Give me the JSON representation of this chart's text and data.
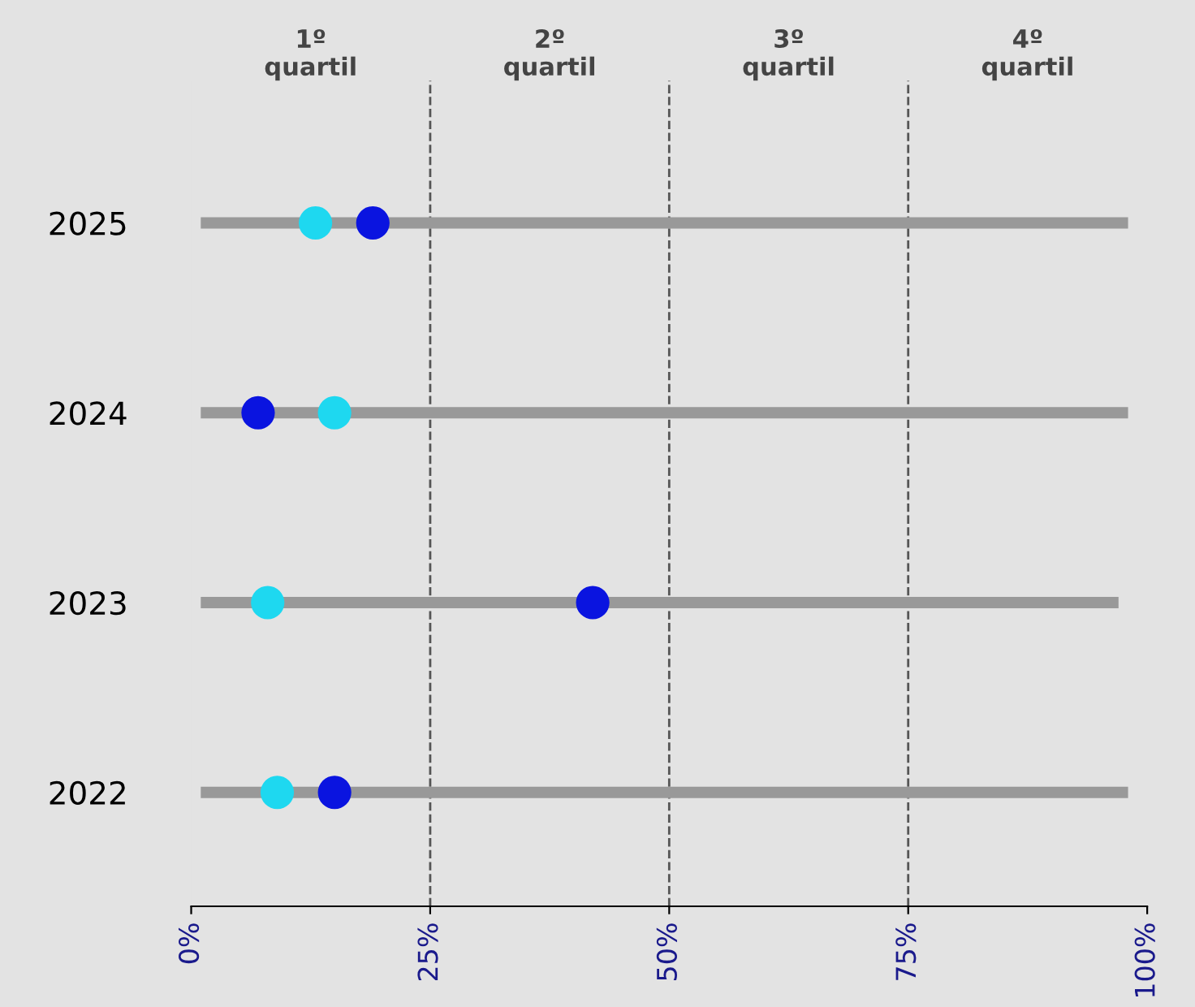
{
  "chart_data": {
    "type": "bar",
    "orientation": "horizontal",
    "categories": [
      "2025",
      "2024",
      "2023",
      "2022"
    ],
    "series": [
      {
        "color": "#999999",
        "base": [
          1,
          1,
          1,
          1
        ],
        "values": [
          97,
          97,
          96,
          97
        ]
      },
      {
        "type": "scatter",
        "color": "#1ed8f0",
        "values": [
          13,
          15,
          8,
          9
        ]
      },
      {
        "type": "scatter",
        "color": "#0a14e0",
        "values": [
          19,
          7,
          42,
          15
        ]
      }
    ],
    "xlim": [
      0,
      100
    ],
    "xticks": [
      {
        "value": 0,
        "label": "0%"
      },
      {
        "value": 25,
        "label": "25%"
      },
      {
        "value": 50,
        "label": "50%"
      },
      {
        "value": 75,
        "label": "75%"
      },
      {
        "value": 100,
        "label": "100%"
      }
    ],
    "annotations": [
      "1º\nquartil",
      "2º\nquartil",
      "3º\nquartil",
      "4º\nquartil"
    ],
    "ref_lines": [
      {
        "axis": "x",
        "value": 25,
        "color": "#555555",
        "line_style": "dashed"
      },
      {
        "axis": "x",
        "value": 50,
        "color": "#555555",
        "line_style": "dashed"
      },
      {
        "axis": "x",
        "value": 75,
        "color": "#555555",
        "line_style": "dashed"
      }
    ],
    "marker": "circle",
    "grid": false,
    "legend": false
  }
}
